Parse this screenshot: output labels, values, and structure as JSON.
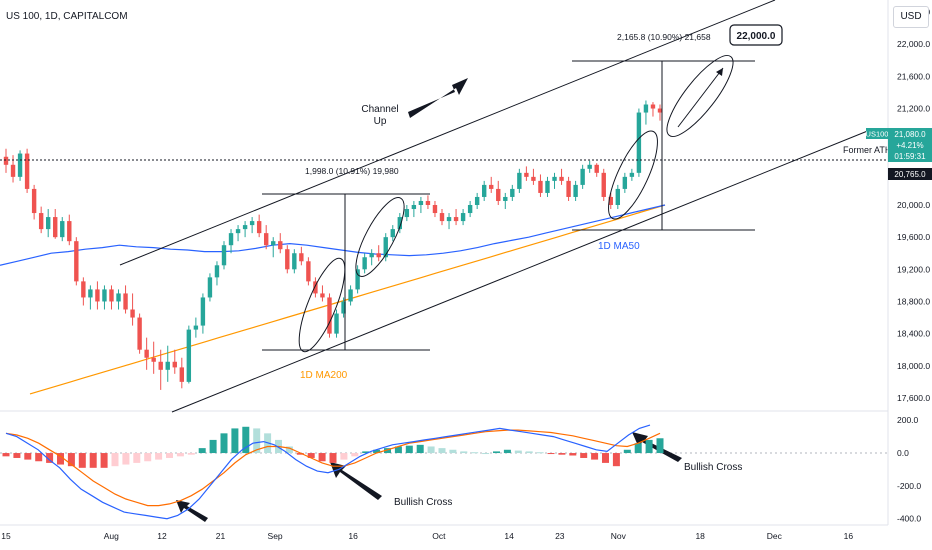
{
  "header": {
    "title": "US 100, 1D, CAPITALCOM",
    "currency": "USD"
  },
  "chart_data": {
    "type": "candlestick",
    "symbol": "US100",
    "price_axis": {
      "ticks": [
        17600,
        18000,
        18400,
        18800,
        19200,
        19600,
        20000,
        20400,
        20800,
        21200,
        21600,
        22000,
        22400
      ],
      "labels": [
        "17,600.0",
        "18,000.0",
        "18,400.0",
        "18,800.0",
        "19,200.0",
        "19,600.0",
        "20,000.0",
        "20,400.0",
        "20,800.0",
        "21,200.0",
        "21,600.0",
        "22,000.0",
        "22,400.0"
      ],
      "range": [
        17450,
        22550
      ]
    },
    "macd_axis": {
      "ticks": [
        200,
        0,
        -200,
        -400
      ],
      "labels": [
        "200.0",
        "0.0",
        "-200.0",
        "-400.0"
      ],
      "range": [
        -420,
        250
      ]
    },
    "x_axis": {
      "ticks": [
        {
          "i": 0,
          "label": "15"
        },
        {
          "i": 27,
          "label": "Aug"
        },
        {
          "i": 40,
          "label": "12"
        },
        {
          "i": 55,
          "label": "21"
        },
        {
          "i": 69,
          "label": "Sep"
        },
        {
          "i": 89,
          "label": "16"
        },
        {
          "i": 111,
          "label": "Oct"
        },
        {
          "i": 129,
          "label": "14"
        },
        {
          "i": 142,
          "label": "23"
        },
        {
          "i": 157,
          "label": "Nov"
        },
        {
          "i": 178,
          "label": "18"
        },
        {
          "i": 197,
          "label": "Dec"
        },
        {
          "i": 216,
          "label": "16"
        }
      ]
    },
    "candles": [
      [
        20600,
        20700,
        20400,
        20500
      ],
      [
        20500,
        20620,
        20280,
        20350
      ],
      [
        20350,
        20680,
        20300,
        20640
      ],
      [
        20640,
        20700,
        20150,
        20200
      ],
      [
        20200,
        20250,
        19820,
        19900
      ],
      [
        19900,
        19980,
        19650,
        19700
      ],
      [
        19700,
        19950,
        19600,
        19850
      ],
      [
        19850,
        19950,
        19580,
        19600
      ],
      [
        19600,
        19850,
        19550,
        19800
      ],
      [
        19800,
        19880,
        19500,
        19550
      ],
      [
        19550,
        19600,
        19000,
        19050
      ],
      [
        19050,
        19100,
        18750,
        18850
      ],
      [
        18850,
        19000,
        18700,
        18950
      ],
      [
        18950,
        19050,
        18700,
        18800
      ],
      [
        18800,
        19000,
        18700,
        18950
      ],
      [
        18950,
        19000,
        18700,
        18800
      ],
      [
        18800,
        18950,
        18700,
        18900
      ],
      [
        18900,
        19000,
        18650,
        18700
      ],
      [
        18700,
        18900,
        18500,
        18600
      ],
      [
        18600,
        18650,
        18150,
        18200
      ],
      [
        18200,
        18350,
        17950,
        18100
      ],
      [
        18100,
        18300,
        17900,
        18050
      ],
      [
        18050,
        18200,
        17700,
        17950
      ],
      [
        17950,
        18250,
        17800,
        18050
      ],
      [
        18050,
        18200,
        17900,
        17980
      ],
      [
        17980,
        18100,
        17720,
        17800
      ],
      [
        17800,
        18500,
        17780,
        18450
      ],
      [
        18450,
        18600,
        18350,
        18500
      ],
      [
        18500,
        18900,
        18400,
        18850
      ],
      [
        18850,
        19150,
        18800,
        19100
      ],
      [
        19100,
        19300,
        19000,
        19250
      ],
      [
        19250,
        19550,
        19200,
        19500
      ],
      [
        19500,
        19700,
        19400,
        19650
      ],
      [
        19650,
        19750,
        19550,
        19700
      ],
      [
        19700,
        19800,
        19600,
        19750
      ],
      [
        19750,
        19850,
        19650,
        19800
      ],
      [
        19800,
        19880,
        19600,
        19650
      ],
      [
        19650,
        19750,
        19450,
        19500
      ],
      [
        19500,
        19600,
        19350,
        19550
      ],
      [
        19550,
        19650,
        19400,
        19450
      ],
      [
        19450,
        19500,
        19150,
        19200
      ],
      [
        19200,
        19450,
        19150,
        19400
      ],
      [
        19400,
        19480,
        19250,
        19300
      ],
      [
        19300,
        19350,
        19000,
        19050
      ],
      [
        19050,
        19100,
        18850,
        18900
      ],
      [
        18900,
        19000,
        18800,
        18850
      ],
      [
        18850,
        18900,
        18350,
        18400
      ],
      [
        18400,
        18700,
        18350,
        18650
      ],
      [
        18650,
        18850,
        18600,
        18800
      ],
      [
        18800,
        19000,
        18750,
        18950
      ],
      [
        18950,
        19250,
        18900,
        19200
      ],
      [
        19200,
        19400,
        19150,
        19350
      ],
      [
        19350,
        19450,
        19250,
        19400
      ],
      [
        19400,
        19500,
        19300,
        19350
      ],
      [
        19350,
        19650,
        19300,
        19600
      ],
      [
        19600,
        19750,
        19550,
        19700
      ],
      [
        19700,
        19900,
        19650,
        19850
      ],
      [
        19850,
        20000,
        19800,
        19950
      ],
      [
        19950,
        20050,
        19850,
        20000
      ],
      [
        20000,
        20100,
        19900,
        20050
      ],
      [
        20050,
        20120,
        19950,
        20000
      ],
      [
        20000,
        20050,
        19850,
        19900
      ],
      [
        19900,
        19950,
        19750,
        19800
      ],
      [
        19800,
        19900,
        19700,
        19850
      ],
      [
        19850,
        19950,
        19750,
        19800
      ],
      [
        19800,
        19950,
        19750,
        19900
      ],
      [
        19900,
        20050,
        19850,
        20000
      ],
      [
        20000,
        20150,
        19950,
        20100
      ],
      [
        20100,
        20300,
        20050,
        20250
      ],
      [
        20250,
        20350,
        20150,
        20200
      ],
      [
        20200,
        20300,
        20000,
        20050
      ],
      [
        20050,
        20150,
        19950,
        20100
      ],
      [
        20100,
        20250,
        20050,
        20200
      ],
      [
        20200,
        20450,
        20150,
        20400
      ],
      [
        20400,
        20480,
        20300,
        20350
      ],
      [
        20350,
        20450,
        20250,
        20300
      ],
      [
        20300,
        20380,
        20100,
        20150
      ],
      [
        20150,
        20350,
        20100,
        20300
      ],
      [
        20300,
        20400,
        20200,
        20350
      ],
      [
        20350,
        20450,
        20250,
        20300
      ],
      [
        20300,
        20350,
        20050,
        20100
      ],
      [
        20100,
        20300,
        20050,
        20250
      ],
      [
        20250,
        20500,
        20200,
        20450
      ],
      [
        20450,
        20550,
        20400,
        20500
      ],
      [
        20500,
        20520,
        20350,
        20400
      ],
      [
        20400,
        20450,
        20050,
        20100
      ],
      [
        20100,
        20150,
        19950,
        20000
      ],
      [
        20000,
        20250,
        19950,
        20200
      ],
      [
        20200,
        20400,
        20150,
        20350
      ],
      [
        20350,
        20450,
        20300,
        20400
      ],
      [
        20400,
        21200,
        20350,
        21150
      ],
      [
        21150,
        21300,
        21000,
        21250
      ],
      [
        21250,
        21280,
        21100,
        21200
      ],
      [
        21200,
        21250,
        21050,
        21150
      ]
    ],
    "ma50": [
      19250,
      19300,
      19350,
      19400,
      19420,
      19450,
      19470,
      19500,
      19480,
      19470,
      19450,
      19440,
      19420,
      19420,
      19430,
      19460,
      19500,
      19520,
      19500,
      19470,
      19440,
      19410,
      19390,
      19380,
      19370,
      19380,
      19400,
      19430,
      19470,
      19520,
      19560,
      19600,
      19650,
      19700,
      19750,
      19800,
      19850,
      19900,
      19950,
      20000
    ],
    "ma200": [
      17650,
      17700,
      17750,
      17800,
      17850,
      17900,
      17950,
      18000,
      18050,
      18100,
      18150,
      18200,
      18250,
      18300,
      18350,
      18400,
      18450,
      18500,
      18550,
      18600,
      18650,
      18700,
      18750,
      18800,
      18850,
      18900,
      18950,
      19000,
      19050,
      19100,
      19150,
      19200,
      19250,
      19300,
      19350,
      19400,
      19450,
      19500,
      19550,
      19600,
      19650,
      19700,
      19750,
      19800,
      19850,
      19900,
      19950,
      20000
    ],
    "macd": {
      "line": [
        120,
        100,
        60,
        20,
        -40,
        -90,
        -160,
        -220,
        -260,
        -300,
        -330,
        -360,
        -370,
        -380,
        -390,
        -400,
        -380,
        -340,
        -280,
        -200,
        -120,
        -40,
        20,
        60,
        70,
        50,
        10,
        -40,
        -80,
        -110,
        -120,
        -100,
        -60,
        -20,
        10,
        30,
        50,
        60,
        70,
        80,
        90,
        100,
        110,
        120,
        130,
        140,
        150,
        140,
        130,
        120,
        110,
        100,
        80,
        60,
        40,
        20,
        10,
        60,
        110,
        150,
        170
      ],
      "signal": [
        120,
        110,
        90,
        60,
        20,
        -20,
        -70,
        -120,
        -170,
        -210,
        -250,
        -280,
        -300,
        -320,
        -320,
        -310,
        -290,
        -260,
        -220,
        -170,
        -120,
        -60,
        -10,
        20,
        40,
        40,
        30,
        0,
        -30,
        -60,
        -80,
        -80,
        -60,
        -30,
        0,
        20,
        40,
        60,
        70,
        80,
        90,
        100,
        110,
        120,
        130,
        135,
        140,
        140,
        135,
        130,
        125,
        115,
        105,
        90,
        75,
        60,
        45,
        40,
        60,
        90,
        120
      ],
      "hist": [
        -20,
        -30,
        -40,
        -50,
        -60,
        -70,
        -80,
        -90,
        -90,
        -90,
        -80,
        -70,
        -60,
        -50,
        -40,
        -30,
        -20,
        -10,
        30,
        80,
        120,
        150,
        160,
        150,
        120,
        80,
        40,
        -10,
        -30,
        -50,
        -60,
        -40,
        -20,
        10,
        20,
        30,
        40,
        45,
        50,
        40,
        30,
        20,
        10,
        5,
        0,
        10,
        20,
        15,
        10,
        5,
        -5,
        -10,
        -15,
        -30,
        -40,
        -60,
        -80,
        20,
        60,
        80,
        90
      ]
    },
    "annotations": {
      "channel_label": "Channel\nUp",
      "ma50_label": "1D MA50",
      "ma200_label": "1D MA200",
      "former_ath": "Former ATH",
      "measure1": "1,998.0 (10.91%) 19,980",
      "measure2": "2,165.8 (10.90%) 21,658",
      "target": "22,000.0",
      "bullish_cross_1": "Bullish Cross",
      "bullish_cross_2": "Bullish Cross"
    },
    "price_tags": {
      "last": {
        "symbol": "US100",
        "price": "21,080.0",
        "change": "+4.21%",
        "time": "01:59:31"
      },
      "ath": "20,765.0"
    }
  },
  "colors": {
    "up": "#26a69a",
    "down": "#ef5350",
    "ma50": "#2962ff",
    "ma200": "#ff9800",
    "axis": "#787b86"
  }
}
